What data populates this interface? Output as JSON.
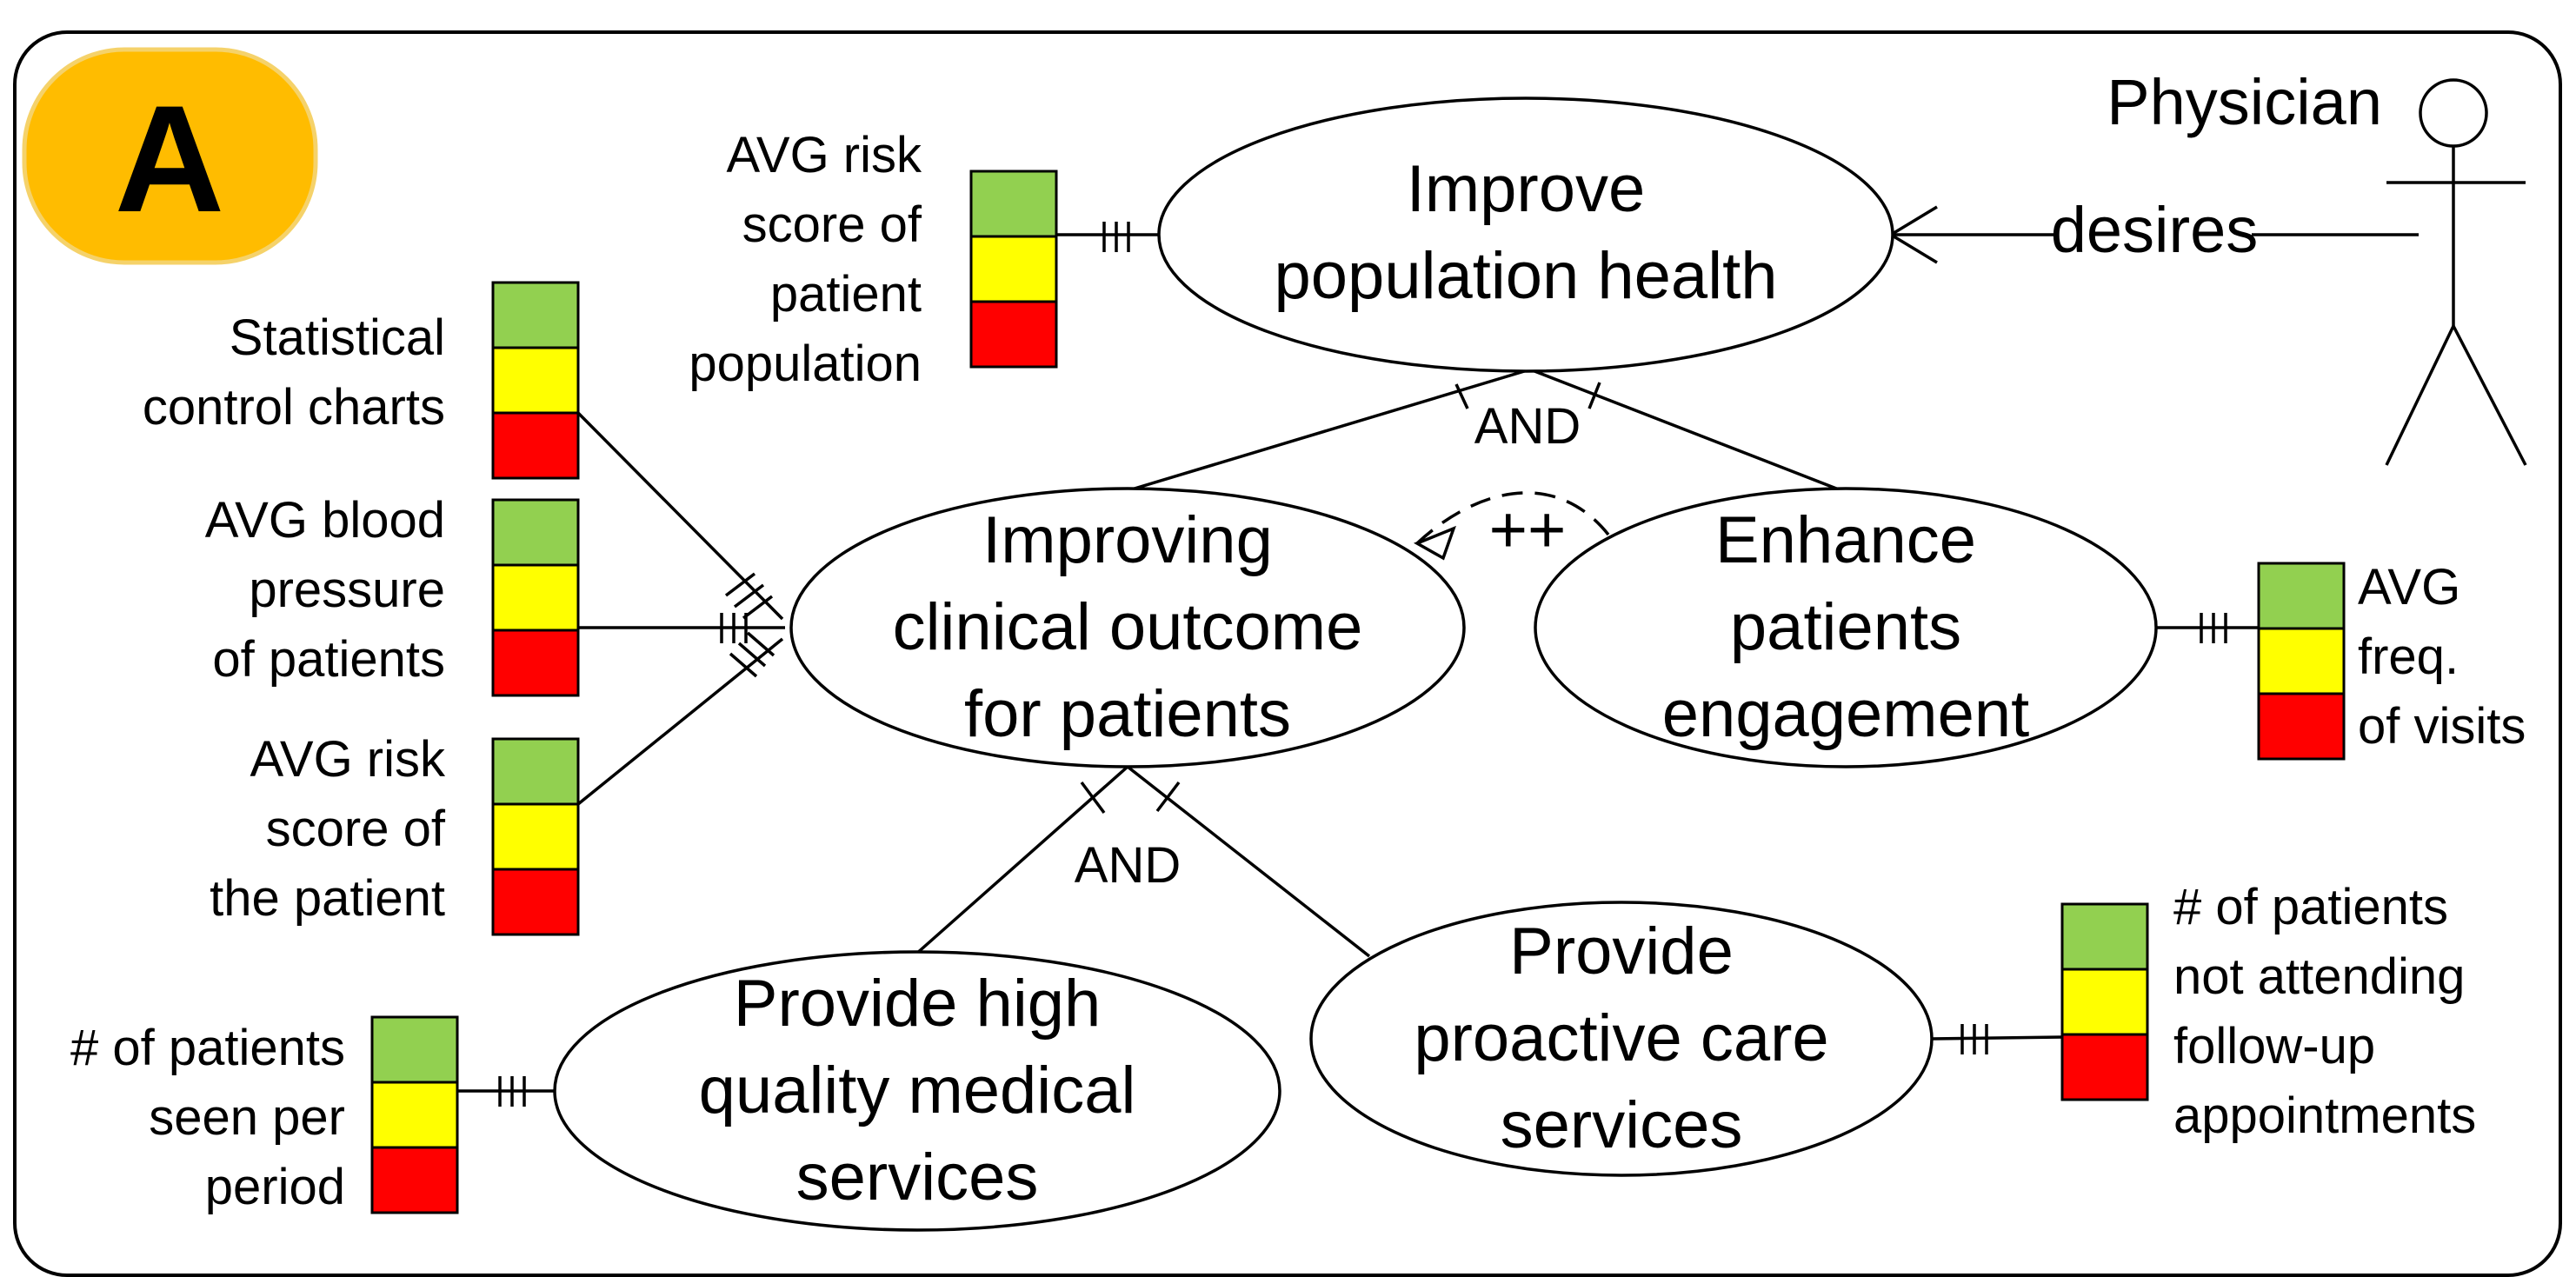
{
  "panel_label": "A",
  "colors": {
    "badge": "#FFBC00",
    "badge_border": "#F5D26A",
    "green": "#92D050",
    "yellow": "#FFFF00",
    "red": "#FF0000"
  },
  "actor": {
    "name": "Physician",
    "relation": "desires"
  },
  "goals": {
    "improve_population_health": [
      "Improve",
      "population health"
    ],
    "improving_clinical_outcome": [
      "Improving",
      "clinical outcome",
      "for patients"
    ],
    "enhance_patients_engagement": [
      "Enhance",
      "patients",
      "engagement"
    ],
    "provide_high_quality": [
      "Provide high",
      "quality medical",
      "services"
    ],
    "provide_proactive_care": [
      "Provide",
      "proactive care",
      "services"
    ]
  },
  "decompositions": {
    "top": "AND",
    "bottom": "AND"
  },
  "contribution": "++",
  "indicators": {
    "avg_risk_population": [
      "AVG risk",
      "score of",
      "patient",
      "population"
    ],
    "statistical_control": [
      "Statistical",
      "control charts"
    ],
    "avg_blood_pressure": [
      "AVG blood",
      "pressure",
      "of patients"
    ],
    "avg_risk_patient": [
      "AVG risk",
      "score of",
      "the patient"
    ],
    "avg_freq_visits": [
      "AVG",
      "freq.",
      "of visits"
    ],
    "patients_seen": [
      "# of patients",
      "seen per",
      "period"
    ],
    "patients_not_attending": [
      "# of patients",
      "not attending",
      "follow-up",
      "appointments"
    ]
  }
}
